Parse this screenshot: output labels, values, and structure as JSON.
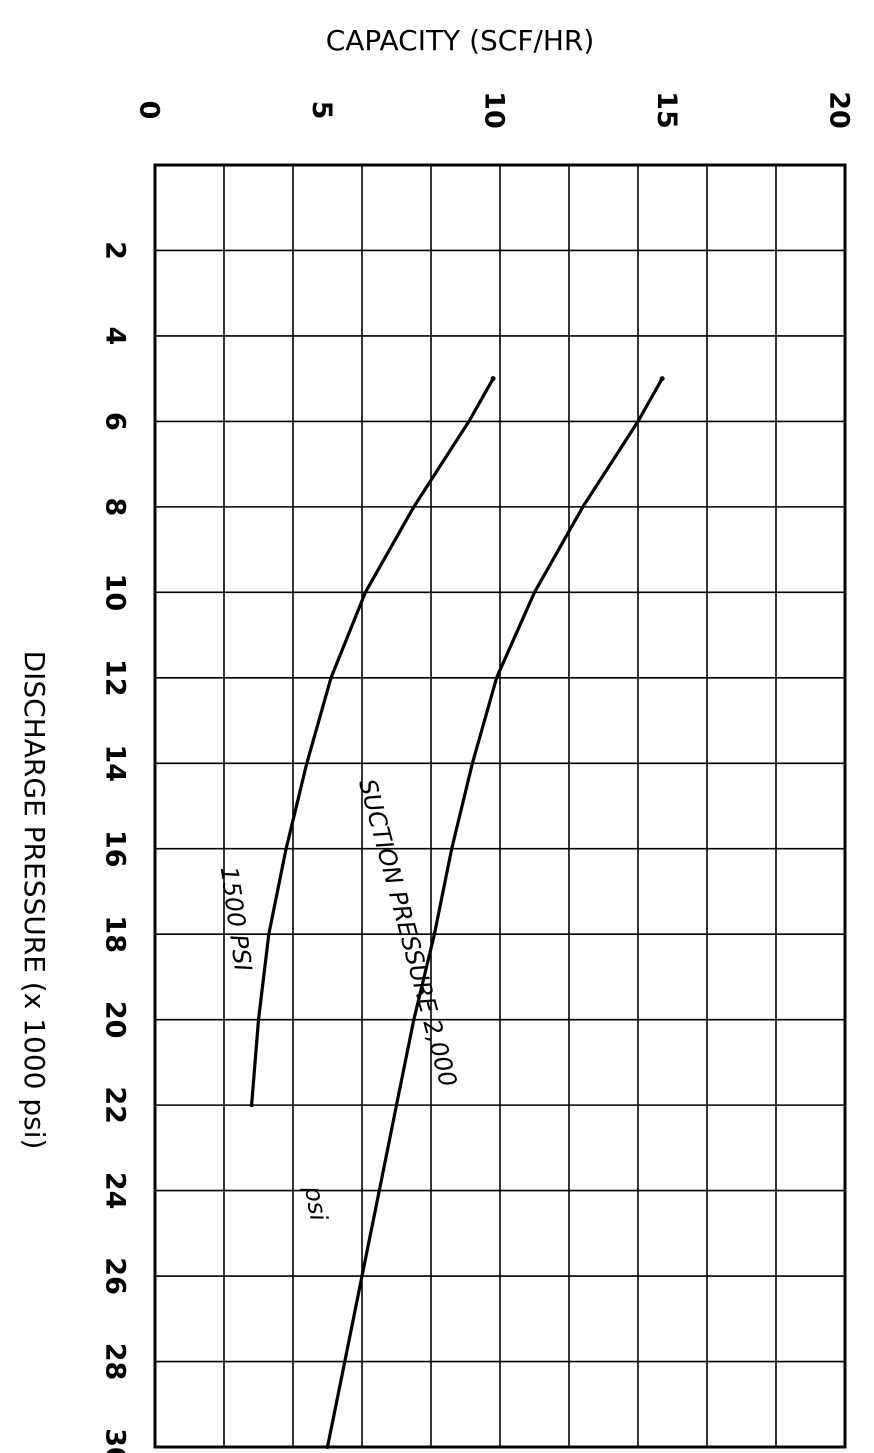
{
  "chart_data": {
    "type": "line",
    "orientation": "rotated-90-clockwise",
    "xlabel": "DISCHARGE PRESSURE (x 1000 psi)",
    "ylabel": "CAPACITY (SCF/HR)",
    "x_ticks": [
      "2",
      "4",
      "6",
      "8",
      "10",
      "12",
      "14",
      "16",
      "18",
      "20",
      "22",
      "24",
      "26",
      "28",
      "30"
    ],
    "y_ticks": [
      "0",
      "5",
      "10",
      "15",
      "20"
    ],
    "xlim": [
      0,
      30
    ],
    "ylim": [
      0,
      20
    ],
    "grid": true,
    "series": [
      {
        "name": "1500 PSI",
        "label_lines": [
          "1500 PSI"
        ],
        "x": [
          5,
          6,
          8,
          10,
          12,
          14,
          16,
          18,
          20,
          22
        ],
        "y": [
          9.8,
          9.1,
          7.5,
          6.1,
          5.1,
          4.4,
          3.8,
          3.3,
          3.0,
          2.8
        ]
      },
      {
        "name": "SUCTION PRESSURE 2,000 psi",
        "label_lines": [
          "SUCTION PRESSURE 2,000",
          "psi"
        ],
        "x": [
          5,
          6,
          8,
          10,
          12,
          14,
          16,
          18,
          20,
          22,
          24,
          26,
          28,
          30
        ],
        "y": [
          14.7,
          14.0,
          12.4,
          11.0,
          9.9,
          9.2,
          8.6,
          8.1,
          7.5,
          7.0,
          6.5,
          6.0,
          5.5,
          5.0
        ]
      }
    ]
  }
}
